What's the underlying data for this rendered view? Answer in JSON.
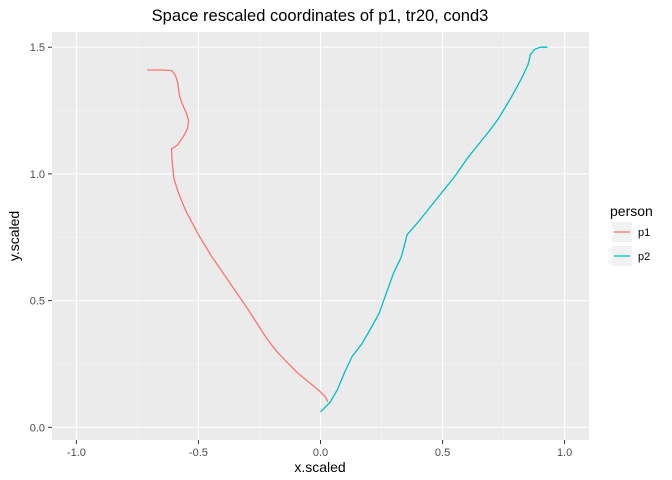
{
  "chart_data": {
    "type": "line",
    "title": "Space rescaled coordinates of p1, tr20, cond3",
    "xlabel": "x.scaled",
    "ylabel": "y.scaled",
    "xlim": [
      -1.1,
      1.1
    ],
    "ylim": [
      -0.05,
      1.56
    ],
    "x_ticks": [
      -1.0,
      -0.5,
      0.0,
      0.5,
      1.0
    ],
    "x_tick_labels": [
      "-1.0",
      "-0.5",
      "0.0",
      "0.5",
      "1.0"
    ],
    "y_ticks": [
      0.0,
      0.5,
      1.0,
      1.5
    ],
    "y_tick_labels": [
      "0.0",
      "0.5",
      "1.0",
      "1.5"
    ],
    "grid": true,
    "legend": {
      "title": "person",
      "position": "right"
    },
    "series": [
      {
        "name": "p1",
        "color": "#F8766D",
        "points": [
          [
            -0.71,
            1.41
          ],
          [
            -0.65,
            1.41
          ],
          [
            -0.61,
            1.408
          ],
          [
            -0.595,
            1.39
          ],
          [
            -0.585,
            1.36
          ],
          [
            -0.578,
            1.31
          ],
          [
            -0.568,
            1.28
          ],
          [
            -0.55,
            1.24
          ],
          [
            -0.54,
            1.21
          ],
          [
            -0.545,
            1.18
          ],
          [
            -0.56,
            1.15
          ],
          [
            -0.585,
            1.115
          ],
          [
            -0.6,
            1.105
          ],
          [
            -0.61,
            1.1
          ],
          [
            -0.608,
            1.05
          ],
          [
            -0.6,
            0.98
          ],
          [
            -0.58,
            0.92
          ],
          [
            -0.55,
            0.85
          ],
          [
            -0.5,
            0.76
          ],
          [
            -0.45,
            0.68
          ],
          [
            -0.4,
            0.61
          ],
          [
            -0.35,
            0.54
          ],
          [
            -0.3,
            0.47
          ],
          [
            -0.26,
            0.41
          ],
          [
            -0.22,
            0.35
          ],
          [
            -0.18,
            0.3
          ],
          [
            -0.14,
            0.26
          ],
          [
            -0.1,
            0.22
          ],
          [
            -0.05,
            0.18
          ],
          [
            0.0,
            0.14
          ],
          [
            0.02,
            0.12
          ],
          [
            0.03,
            0.1
          ]
        ]
      },
      {
        "name": "p2",
        "color": "#00BFC4",
        "points": [
          [
            0.0,
            0.06
          ],
          [
            0.04,
            0.1
          ],
          [
            0.07,
            0.15
          ],
          [
            0.1,
            0.22
          ],
          [
            0.13,
            0.28
          ],
          [
            0.17,
            0.33
          ],
          [
            0.2,
            0.38
          ],
          [
            0.24,
            0.45
          ],
          [
            0.27,
            0.53
          ],
          [
            0.3,
            0.61
          ],
          [
            0.33,
            0.67
          ],
          [
            0.355,
            0.76
          ],
          [
            0.4,
            0.81
          ],
          [
            0.45,
            0.87
          ],
          [
            0.5,
            0.93
          ],
          [
            0.55,
            0.99
          ],
          [
            0.6,
            1.06
          ],
          [
            0.65,
            1.12
          ],
          [
            0.7,
            1.18
          ],
          [
            0.73,
            1.22
          ],
          [
            0.78,
            1.3
          ],
          [
            0.82,
            1.37
          ],
          [
            0.85,
            1.43
          ],
          [
            0.86,
            1.47
          ],
          [
            0.875,
            1.49
          ],
          [
            0.9,
            1.5
          ],
          [
            0.93,
            1.5
          ]
        ]
      }
    ]
  }
}
